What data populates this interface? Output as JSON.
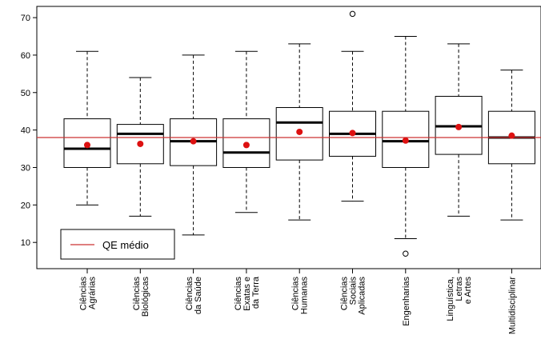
{
  "chart_data": {
    "type": "boxplot",
    "title": "",
    "xlabel": "",
    "ylabel": "",
    "ylim": [
      3,
      73
    ],
    "y_ticks": [
      10,
      20,
      30,
      40,
      50,
      60,
      70
    ],
    "grid": false,
    "legend": {
      "placement": "bottom-left",
      "entries": [
        {
          "label": "QE médio",
          "color": "#cc3333",
          "style": "line"
        }
      ]
    },
    "reference_line": {
      "name": "QE médio",
      "value": 38,
      "color": "#cc3333"
    },
    "mean_marker_color": "#dd1111",
    "categories": [
      {
        "lines": [
          "Ciências",
          "Agrárias"
        ],
        "min": 20,
        "q1": 30,
        "median": 35,
        "q3": 43,
        "max": 61,
        "mean": 36,
        "outliers": []
      },
      {
        "lines": [
          "Ciências",
          "Biológicas"
        ],
        "min": 17,
        "q1": 31,
        "median": 39,
        "q3": 41.5,
        "max": 54,
        "mean": 36.3,
        "outliers": []
      },
      {
        "lines": [
          "Ciências",
          "da Saúde"
        ],
        "min": 12,
        "q1": 30.5,
        "median": 37,
        "q3": 43,
        "max": 60,
        "mean": 37,
        "outliers": []
      },
      {
        "lines": [
          "Ciências",
          "Exatas e",
          "da Terra"
        ],
        "min": 18,
        "q1": 30,
        "median": 34,
        "q3": 43,
        "max": 61,
        "mean": 36,
        "outliers": []
      },
      {
        "lines": [
          "Ciências",
          "Humanas"
        ],
        "min": 16,
        "q1": 32,
        "median": 42,
        "q3": 46,
        "max": 63,
        "mean": 39.5,
        "outliers": []
      },
      {
        "lines": [
          "Ciências",
          "Sociais",
          "Aplicadas"
        ],
        "min": 21,
        "q1": 33,
        "median": 39,
        "q3": 45,
        "max": 61,
        "mean": 39.2,
        "outliers": [
          71
        ]
      },
      {
        "lines": [
          "Engenharias"
        ],
        "min": 11,
        "q1": 30,
        "median": 37,
        "q3": 45,
        "max": 65,
        "mean": 37.2,
        "outliers": [
          7
        ]
      },
      {
        "lines": [
          "Linguística,",
          "Letras",
          "e Artes"
        ],
        "min": 17,
        "q1": 33.5,
        "median": 41,
        "q3": 49,
        "max": 63,
        "mean": 40.8,
        "outliers": []
      },
      {
        "lines": [
          "Multidisciplinar"
        ],
        "min": 16,
        "q1": 31,
        "median": 38,
        "q3": 45,
        "max": 56,
        "mean": 38.5,
        "outliers": []
      }
    ]
  }
}
